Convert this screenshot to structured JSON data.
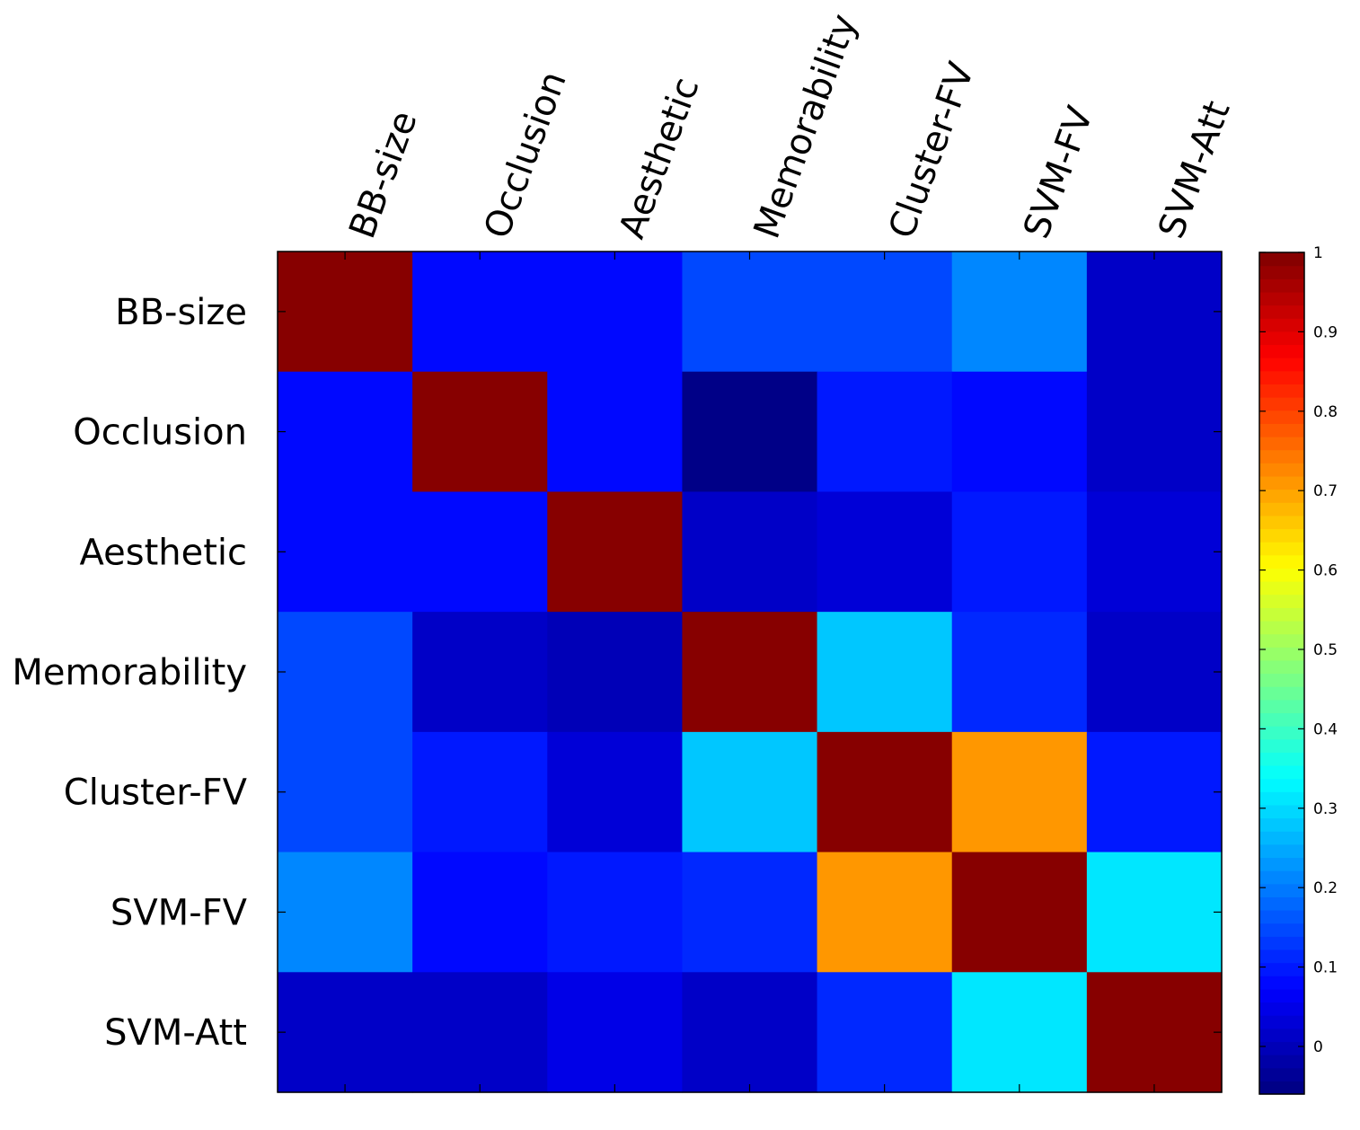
{
  "chart_data": {
    "type": "heatmap",
    "title": "",
    "xlabel": "",
    "ylabel": "",
    "x_categories": [
      "BB-size",
      "Occlusion",
      "Aesthetic",
      "Memorability",
      "Cluster-FV",
      "SVM-FV",
      "SVM-Att"
    ],
    "y_categories": [
      "BB-size",
      "Occlusion",
      "Aesthetic",
      "Memorability",
      "Cluster-FV",
      "SVM-FV",
      "SVM-Att"
    ],
    "values": [
      [
        1.0,
        0.08,
        0.08,
        0.14,
        0.14,
        0.22,
        0.02
      ],
      [
        0.08,
        1.0,
        0.08,
        -0.05,
        0.09,
        0.08,
        0.02
      ],
      [
        0.08,
        0.08,
        1.0,
        0.01,
        0.03,
        0.1,
        0.03
      ],
      [
        0.14,
        0.01,
        -0.01,
        1.0,
        0.28,
        0.12,
        0.01
      ],
      [
        0.14,
        0.09,
        0.03,
        0.28,
        1.0,
        0.71,
        0.1
      ],
      [
        0.22,
        0.08,
        0.1,
        0.12,
        0.71,
        1.0,
        0.31
      ],
      [
        0.02,
        0.02,
        0.04,
        0.01,
        0.12,
        0.31,
        1.0
      ]
    ],
    "colorscale": "jet",
    "colorbar": {
      "range": [
        -0.06,
        1.0
      ],
      "ticks": [
        0,
        0.1,
        0.2,
        0.3,
        0.4,
        0.5,
        0.6,
        0.7,
        0.8,
        0.9,
        1
      ],
      "tick_labels": [
        "0",
        "0.1",
        "0.2",
        "0.3",
        "0.4",
        "0.5",
        "0.6",
        "0.7",
        "0.8",
        "0.9",
        "1"
      ]
    },
    "x_axis_position": "top",
    "x_label_rotation": "-70",
    "grid": false,
    "legend": "colorbar-right"
  }
}
